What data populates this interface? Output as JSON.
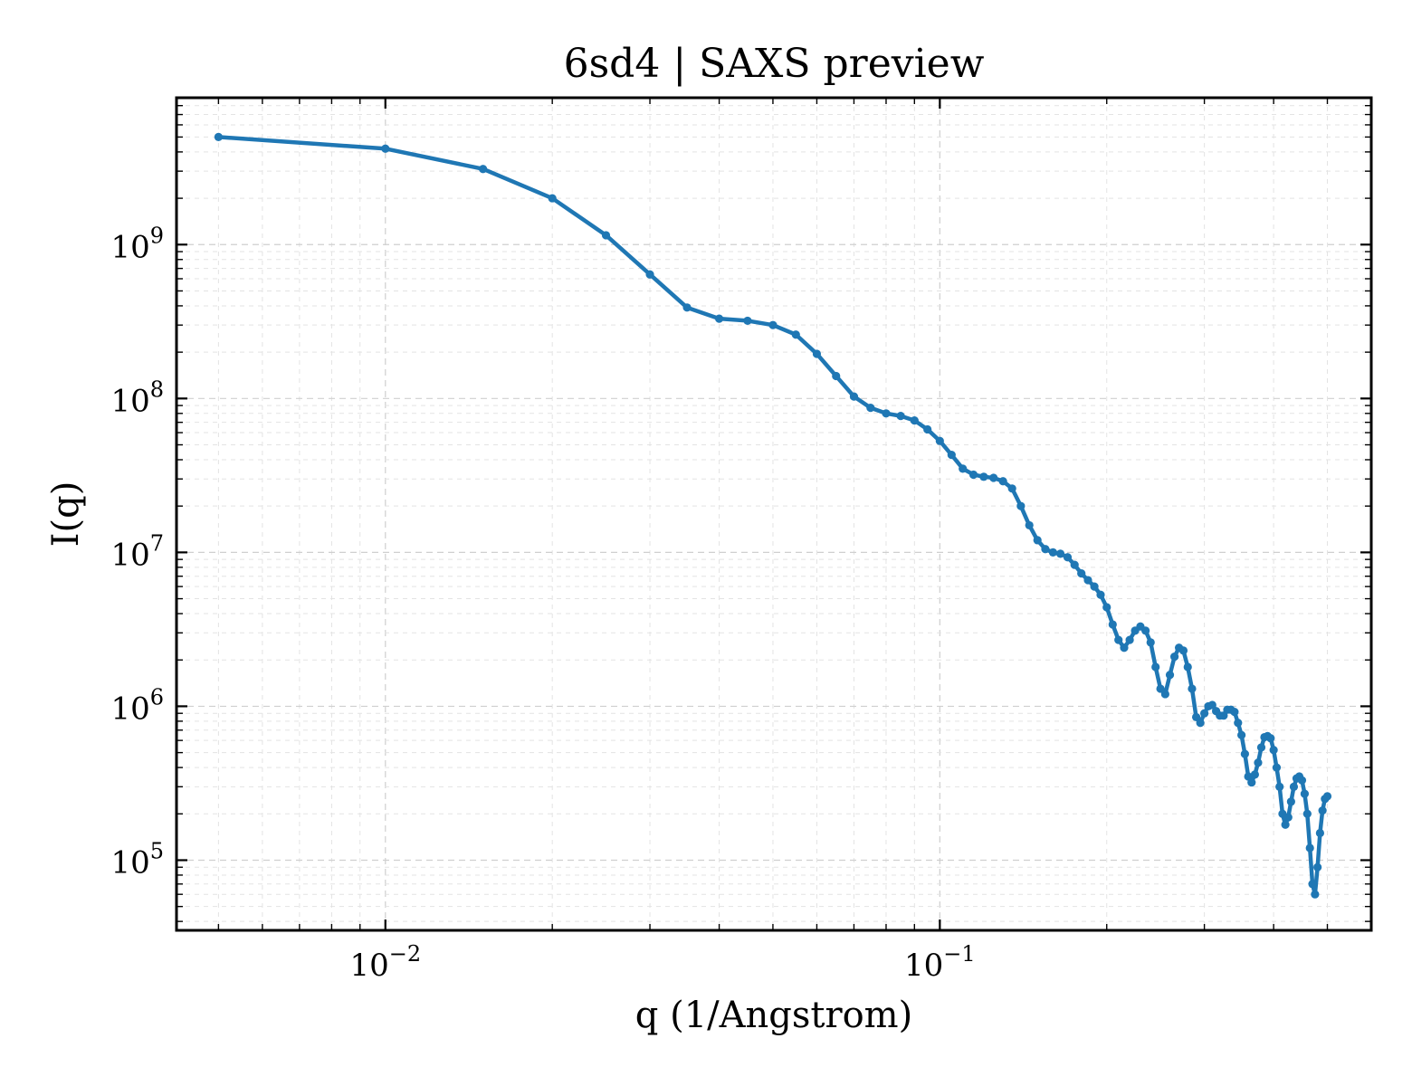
{
  "chart_data": {
    "type": "line",
    "title": "6sd4 | SAXS preview",
    "xlabel": "q (1/Angstrom)",
    "ylabel": "I(q)",
    "xscale": "log",
    "yscale": "log",
    "xlim": [
      0.0042,
      0.6
    ],
    "ylim": [
      35000,
      9000000000
    ],
    "grid": "on (major and minor, dashed)",
    "legend": "none",
    "x_ticks": [
      {
        "value": 0.01,
        "base": "10",
        "exp": "−2"
      },
      {
        "value": 0.1,
        "base": "10",
        "exp": "−1"
      }
    ],
    "y_ticks": [
      {
        "value": 100000,
        "base": "10",
        "exp": "5"
      },
      {
        "value": 1000000,
        "base": "10",
        "exp": "6"
      },
      {
        "value": 10000000,
        "base": "10",
        "exp": "7"
      },
      {
        "value": 100000000,
        "base": "10",
        "exp": "8"
      },
      {
        "value": 1000000000,
        "base": "10",
        "exp": "9"
      }
    ],
    "colors": {
      "series": "#1f77b4"
    },
    "series": [
      {
        "x": [
          0.005,
          0.01,
          0.015,
          0.02,
          0.025,
          0.03,
          0.035,
          0.04,
          0.045,
          0.05,
          0.055,
          0.06,
          0.065,
          0.07,
          0.075,
          0.08,
          0.085,
          0.09,
          0.095,
          0.1,
          0.105,
          0.11,
          0.115,
          0.12,
          0.125,
          0.13,
          0.135,
          0.14,
          0.145,
          0.15,
          0.155,
          0.16,
          0.165,
          0.17,
          0.175,
          0.18,
          0.185,
          0.19,
          0.195,
          0.2,
          0.205,
          0.21,
          0.215,
          0.22,
          0.225,
          0.23,
          0.235,
          0.24,
          0.245,
          0.25,
          0.255,
          0.26,
          0.265,
          0.27,
          0.275,
          0.28,
          0.285,
          0.29,
          0.295,
          0.3,
          0.305,
          0.31,
          0.315,
          0.32,
          0.325,
          0.33,
          0.335,
          0.34,
          0.345,
          0.35,
          0.355,
          0.36,
          0.365,
          0.37,
          0.375,
          0.38,
          0.385,
          0.39,
          0.395,
          0.4,
          0.405,
          0.41,
          0.415,
          0.42,
          0.425,
          0.43,
          0.435,
          0.44,
          0.445,
          0.45,
          0.455,
          0.46,
          0.465,
          0.47,
          0.475,
          0.48,
          0.485,
          0.49,
          0.495,
          0.5
        ],
        "y": [
          5000000000,
          4200000000,
          3100000000,
          2000000000,
          1150000000,
          640000000,
          390000000,
          330000000,
          320000000,
          300000000,
          260000000,
          195000000,
          140000000,
          103000000,
          87000000,
          80000000,
          77000000,
          72000000,
          63000000,
          53000000,
          43000000,
          35000000,
          32000000,
          31000000,
          30500000,
          29000000,
          26000000,
          20000000,
          15000000,
          12000000,
          10500000,
          10000000,
          9800000,
          9300000,
          8300000,
          7300000,
          6600000,
          6000000,
          5300000,
          4400000,
          3400000,
          2700000,
          2400000,
          2700000,
          3100000,
          3300000,
          3100000,
          2600000,
          1800000,
          1300000,
          1200000,
          1600000,
          2100000,
          2400000,
          2300000,
          1800000,
          1300000,
          850000,
          780000,
          900000,
          1000000,
          1020000,
          930000,
          870000,
          870000,
          950000,
          950000,
          920000,
          780000,
          650000,
          490000,
          350000,
          320000,
          360000,
          430000,
          540000,
          630000,
          640000,
          620000,
          520000,
          400000,
          300000,
          200000,
          170000,
          190000,
          240000,
          300000,
          340000,
          350000,
          330000,
          270000,
          200000,
          120000,
          70000,
          60000,
          90000,
          150000,
          210000,
          250000,
          260000
        ]
      }
    ]
  }
}
